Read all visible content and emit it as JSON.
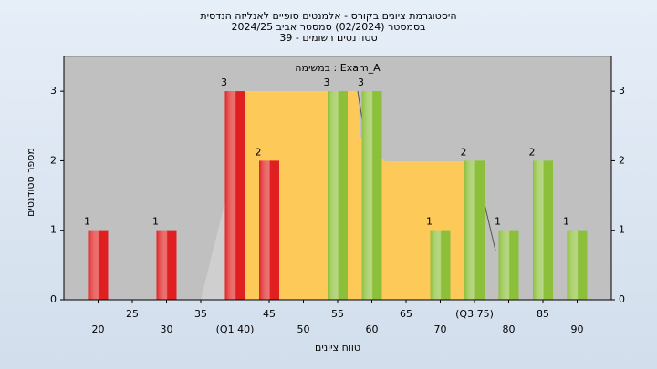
{
  "chart_data": {
    "type": "bar",
    "title": [
      "היסטוגרמת ציונים בקורס - אלמנטים סופיים לאנליזה הנדסית",
      "בסמסטר  (02/2024)  סמסטר אביב 2024/25",
      "סטודנטים רשומים - 39"
    ],
    "annotation": "במשימה : Exam_A",
    "x_label": "טווח ציונים",
    "y_label": "מספר סטודנטים",
    "x": [
      20,
      30,
      40,
      45,
      55,
      60,
      70,
      75,
      80,
      85,
      90
    ],
    "values": [
      1,
      1,
      3,
      2,
      3,
      3,
      1,
      2,
      1,
      2,
      1
    ],
    "colors": [
      "#e02020",
      "#e02020",
      "#e02020",
      "#e02020",
      "#8cbf3a",
      "#8cbf3a",
      "#8cbf3a",
      "#8cbf3a",
      "#8cbf3a",
      "#8cbf3a",
      "#8cbf3a"
    ],
    "xlim": [
      15,
      95
    ],
    "xticks": [
      20,
      25,
      30,
      35,
      {
        "value": 40,
        "label": "(Q1 40)"
      },
      45,
      50,
      55,
      60,
      65,
      70,
      {
        "value": 75,
        "label": "(Q3 75)"
      },
      80,
      85,
      90
    ],
    "ylim": [
      0,
      3.5
    ],
    "yticks": [
      0,
      1,
      2,
      3
    ],
    "grid": false
  }
}
